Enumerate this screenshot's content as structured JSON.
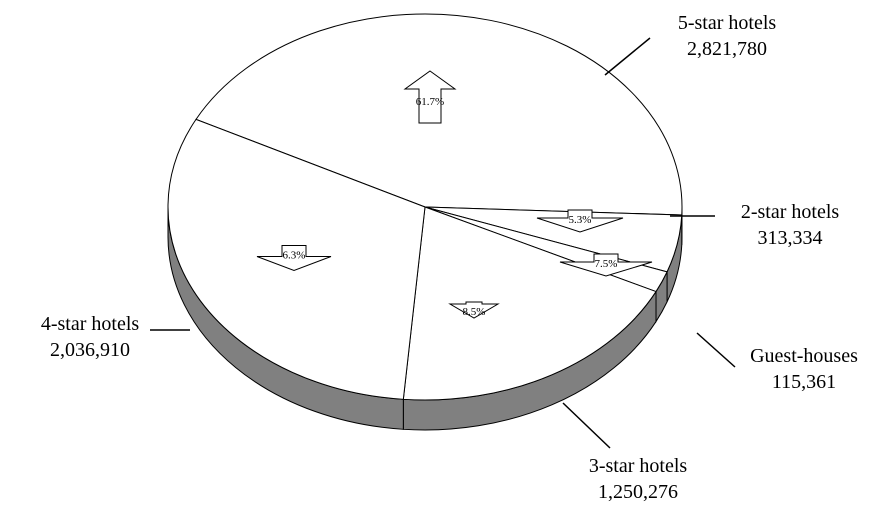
{
  "chart_data": {
    "type": "pie",
    "style": "3d",
    "slices": [
      {
        "label": "5-star hotels",
        "value_text": "2,821,780",
        "value": 2821780,
        "change": "61.7%",
        "direction": "up"
      },
      {
        "label": "2-star hotels",
        "value_text": "313,334",
        "value": 313334,
        "change": "5.3%",
        "direction": "down"
      },
      {
        "label": "Guest-houses",
        "value_text": "115,361",
        "value": 115361,
        "change": "7.5%",
        "direction": "down"
      },
      {
        "label": "3-star hotels",
        "value_text": "1,250,276",
        "value": 1250276,
        "change": "8.5%",
        "direction": "down"
      },
      {
        "label": "4-star hotels",
        "value_text": "2,036,910",
        "value": 2036910,
        "change": "6.3%",
        "direction": "down"
      }
    ],
    "colors": {
      "top": "#ffffff",
      "side": "#808080",
      "stroke": "#000000"
    }
  }
}
